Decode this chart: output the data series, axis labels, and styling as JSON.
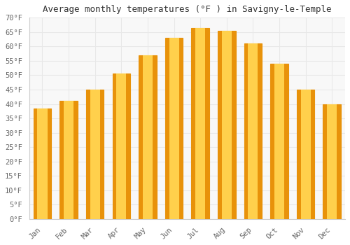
{
  "title": "Average monthly temperatures (°F ) in Savigny-le-Temple",
  "months": [
    "Jan",
    "Feb",
    "Mar",
    "Apr",
    "May",
    "Jun",
    "Jul",
    "Aug",
    "Sep",
    "Oct",
    "Nov",
    "Dec"
  ],
  "values": [
    38.5,
    41.0,
    45.0,
    50.5,
    57.0,
    63.0,
    66.5,
    65.5,
    61.0,
    54.0,
    45.0,
    40.0
  ],
  "bar_color_center": "#FFD04C",
  "bar_color_edge": "#E8920A",
  "ylim": [
    0,
    70
  ],
  "yticks": [
    0,
    5,
    10,
    15,
    20,
    25,
    30,
    35,
    40,
    45,
    50,
    55,
    60,
    65,
    70
  ],
  "background_color": "#ffffff",
  "plot_bg_color": "#f8f8f8",
  "grid_color": "#e8e8e8",
  "title_fontsize": 9,
  "tick_fontsize": 7.5,
  "font_family": "monospace",
  "tick_color": "#666666"
}
